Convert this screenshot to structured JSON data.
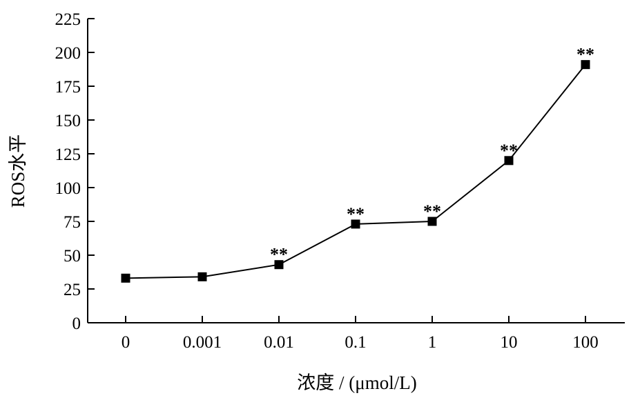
{
  "chart_data": {
    "type": "line",
    "categories": [
      "0",
      "0.001",
      "0.01",
      "0.1",
      "1",
      "10",
      "100"
    ],
    "series": [
      {
        "values": [
          33,
          34,
          43,
          73,
          75,
          120,
          191
        ],
        "marker": "square",
        "color": "#000000"
      }
    ],
    "annotations": [
      "",
      "",
      "**",
      "**",
      "**",
      "**",
      "**"
    ],
    "xlabel": "浓度 / (μmol/L)",
    "ylabel": "ROS水平",
    "ylim": [
      0,
      225
    ],
    "yticks": [
      "0",
      "25",
      "50",
      "75",
      "100",
      "125",
      "150",
      "175",
      "200",
      "225"
    ],
    "grid": false
  }
}
